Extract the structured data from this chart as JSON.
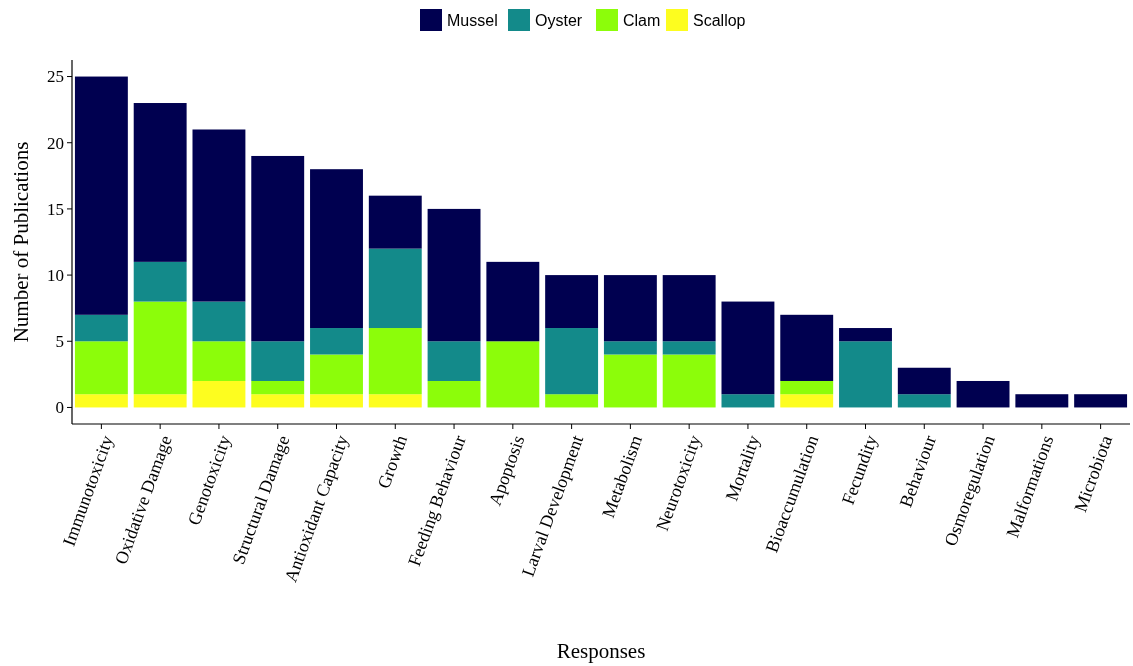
{
  "chart_data": {
    "type": "bar",
    "stacked": true,
    "xlabel": "Responses",
    "ylabel": "Number of Publications",
    "categories": [
      "Immunotoxicity",
      "Oxidative Damage",
      "Genotoxicity",
      "Structural Damage",
      "Antioxidant Capacity",
      "Growth",
      "Feeding Behaviour",
      "Apoptosis",
      "Larval Development",
      "Metabolism",
      "Neurotoxicity",
      "Mortality",
      "Bioaccumulation",
      "Fecundity",
      "Behaviour",
      "Osmoregulation",
      "Malformations",
      "Microbiota"
    ],
    "series": [
      {
        "name": "Scallop",
        "color": "#fdfd1f",
        "values": [
          1,
          1,
          2,
          1,
          1,
          1,
          0,
          0,
          0,
          0,
          0,
          0,
          1,
          0,
          0,
          0,
          0,
          0
        ]
      },
      {
        "name": "Clam",
        "color": "#8cfd0a",
        "values": [
          4,
          7,
          3,
          1,
          3,
          5,
          2,
          5,
          1,
          4,
          4,
          0,
          1,
          0,
          0,
          0,
          0,
          0
        ]
      },
      {
        "name": "Oyster",
        "color": "#138a8a",
        "values": [
          2,
          3,
          3,
          3,
          2,
          6,
          3,
          0,
          5,
          1,
          1,
          1,
          0,
          5,
          1,
          0,
          0,
          0
        ]
      },
      {
        "name": "Mussel",
        "color": "#000050",
        "values": [
          18,
          12,
          13,
          14,
          12,
          4,
          10,
          6,
          4,
          5,
          5,
          7,
          5,
          1,
          2,
          2,
          1,
          1
        ]
      }
    ],
    "ylim": [
      -1.25,
      26.25
    ],
    "yticks": [
      0,
      5,
      10,
      15,
      20,
      25
    ],
    "legend": "top",
    "grid": false
  }
}
